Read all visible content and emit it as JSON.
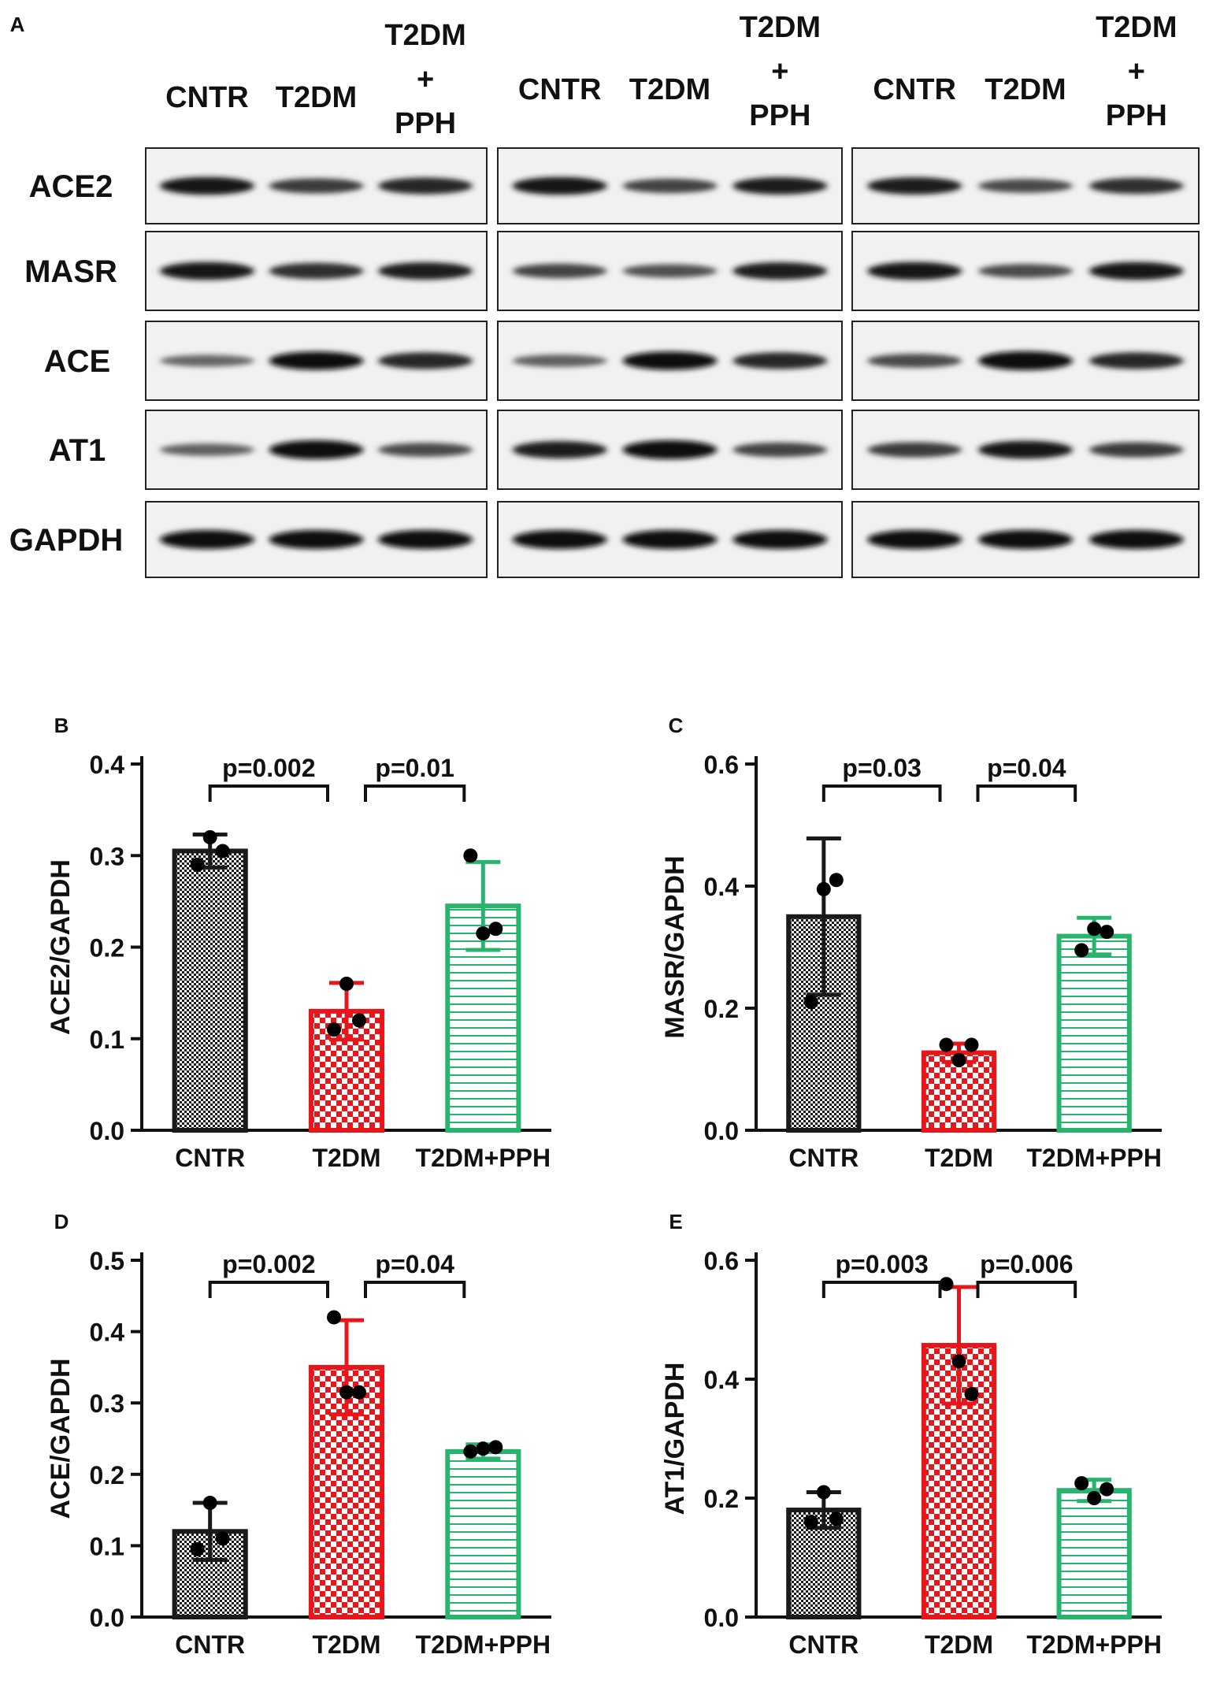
{
  "panel_a": {
    "label": "A",
    "row_labels": [
      "ACE2",
      "MASR",
      "ACE",
      "AT1",
      "GAPDH"
    ],
    "groups": [
      {
        "lanes": [
          {
            "lines": [
              "CNTR"
            ]
          },
          {
            "lines": [
              "T2DM"
            ]
          },
          {
            "lines": [
              "T2DM",
              "+",
              "PPH"
            ]
          }
        ]
      },
      {
        "lanes": [
          {
            "lines": [
              "CNTR"
            ]
          },
          {
            "lines": [
              "T2DM"
            ]
          },
          {
            "lines": [
              "T2DM",
              "+",
              "PPH"
            ]
          }
        ]
      },
      {
        "lanes": [
          {
            "lines": [
              "CNTR"
            ]
          },
          {
            "lines": [
              "T2DM"
            ]
          },
          {
            "lines": [
              "T2DM",
              "+",
              "PPH"
            ]
          }
        ]
      }
    ],
    "band_intensity": [
      [
        [
          0.9,
          0.65,
          0.8
        ],
        [
          0.9,
          0.6,
          0.85
        ],
        [
          0.85,
          0.55,
          0.75
        ]
      ],
      [
        [
          0.9,
          0.75,
          0.85
        ],
        [
          0.6,
          0.5,
          0.85
        ],
        [
          0.9,
          0.55,
          0.9
        ]
      ],
      [
        [
          0.35,
          0.95,
          0.8
        ],
        [
          0.4,
          0.95,
          0.8
        ],
        [
          0.55,
          1.0,
          0.8
        ]
      ],
      [
        [
          0.4,
          1.0,
          0.55
        ],
        [
          0.85,
          1.0,
          0.6
        ],
        [
          0.65,
          0.9,
          0.65
        ]
      ],
      [
        [
          1.0,
          1.0,
          1.0
        ],
        [
          1.0,
          1.0,
          1.0
        ],
        [
          1.0,
          1.0,
          1.0
        ]
      ]
    ]
  },
  "colors": {
    "cntr": "#1a1a1a",
    "t2dm": "#e8161b",
    "pph": "#27b56e"
  },
  "chart_data": [
    {
      "panel": "B",
      "type": "bar",
      "ylabel": "ACE2/GAPDH",
      "ylim": [
        0,
        0.4
      ],
      "yticks": [
        "0.0",
        "0.1",
        "0.2",
        "0.3",
        "0.4"
      ],
      "categories": [
        "CNTR",
        "T2DM",
        "T2DM+PPH"
      ],
      "values": [
        0.305,
        0.13,
        0.245
      ],
      "sd": [
        0.018,
        0.031,
        0.048
      ],
      "points": [
        [
          0.29,
          0.32,
          0.305
        ],
        [
          0.11,
          0.16,
          0.12
        ],
        [
          0.3,
          0.215,
          0.22
        ]
      ],
      "comparisons": [
        {
          "from": 0,
          "to": 1,
          "label": "p=0.002"
        },
        {
          "from": 1,
          "to": 2,
          "label": "p=0.01"
        }
      ]
    },
    {
      "panel": "C",
      "type": "bar",
      "ylabel": "MASR/GAPDH",
      "ylim": [
        0,
        0.6
      ],
      "yticks": [
        "0.0",
        "0.2",
        "0.4",
        "0.6"
      ],
      "categories": [
        "CNTR",
        "T2DM",
        "T2DM+PPH"
      ],
      "values": [
        0.35,
        0.127,
        0.318
      ],
      "sd": [
        0.128,
        0.015,
        0.03
      ],
      "points": [
        [
          0.21,
          0.395,
          0.41
        ],
        [
          0.14,
          0.115,
          0.14
        ],
        [
          0.295,
          0.33,
          0.325
        ]
      ],
      "comparisons": [
        {
          "from": 0,
          "to": 1,
          "label": "p=0.03"
        },
        {
          "from": 1,
          "to": 2,
          "label": "p=0.04"
        }
      ]
    },
    {
      "panel": "D",
      "type": "bar",
      "ylabel": "ACE/GAPDH",
      "ylim": [
        0,
        0.5
      ],
      "yticks": [
        "0.0",
        "0.1",
        "0.2",
        "0.3",
        "0.4",
        "0.5"
      ],
      "categories": [
        "CNTR",
        "T2DM",
        "T2DM+PPH"
      ],
      "values": [
        0.12,
        0.35,
        0.232
      ],
      "sd": [
        0.04,
        0.066,
        0.01
      ],
      "points": [
        [
          0.095,
          0.16,
          0.11
        ],
        [
          0.42,
          0.315,
          0.315
        ],
        [
          0.232,
          0.236,
          0.238
        ]
      ],
      "comparisons": [
        {
          "from": 0,
          "to": 1,
          "label": "p=0.002"
        },
        {
          "from": 1,
          "to": 2,
          "label": "p=0.04"
        }
      ]
    },
    {
      "panel": "E",
      "type": "bar",
      "ylabel": "AT1/GAPDH",
      "ylim": [
        0,
        0.6
      ],
      "yticks": [
        "0.0",
        "0.2",
        "0.4",
        "0.6"
      ],
      "categories": [
        "CNTR",
        "T2DM",
        "T2DM+PPH"
      ],
      "values": [
        0.18,
        0.457,
        0.213
      ],
      "sd": [
        0.03,
        0.098,
        0.018
      ],
      "points": [
        [
          0.16,
          0.21,
          0.165
        ],
        [
          0.56,
          0.43,
          0.375
        ],
        [
          0.225,
          0.2,
          0.215
        ]
      ],
      "comparisons": [
        {
          "from": 0,
          "to": 1,
          "label": "p=0.003"
        },
        {
          "from": 1,
          "to": 2,
          "label": "p=0.006"
        }
      ]
    }
  ]
}
